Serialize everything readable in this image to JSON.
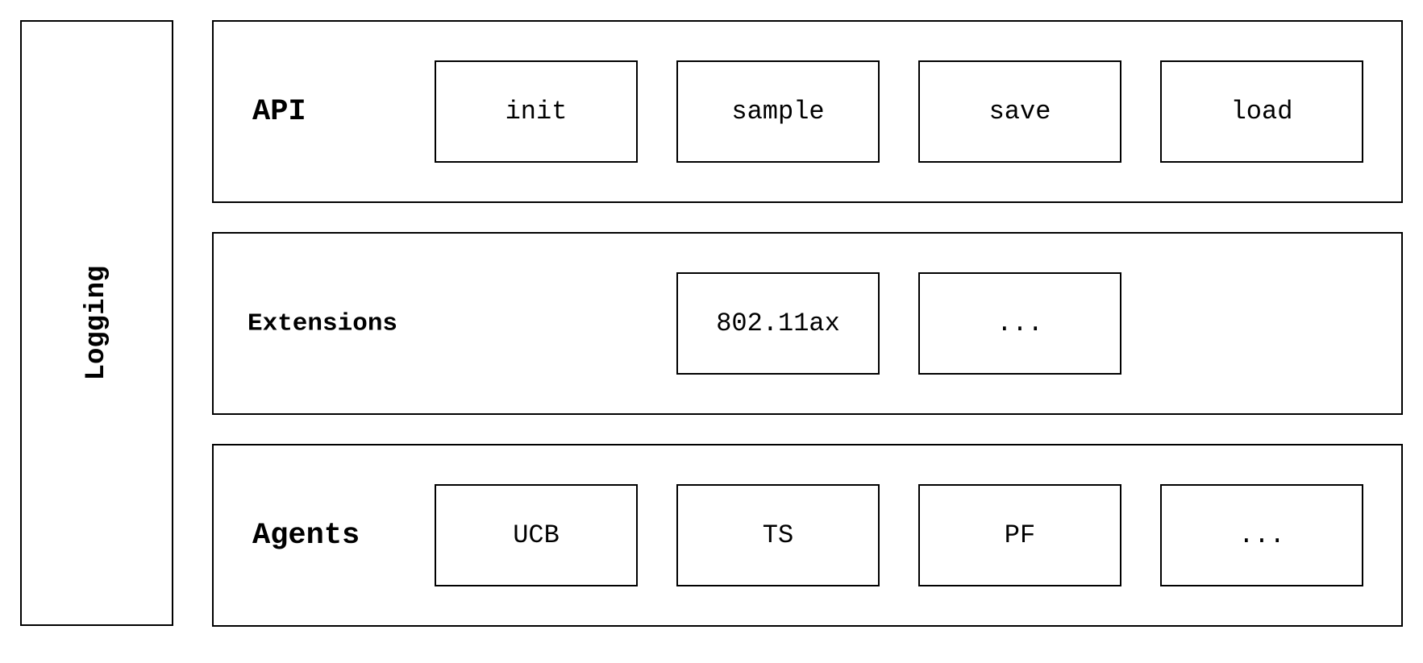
{
  "logging": {
    "label": "Logging"
  },
  "layers": {
    "api": {
      "title": "API",
      "modules": [
        "init",
        "sample",
        "save",
        "load"
      ]
    },
    "extensions": {
      "title": "Extensions",
      "modules": [
        "802.11ax",
        "..."
      ]
    },
    "agents": {
      "title": "Agents",
      "modules": [
        "UCB",
        "TS",
        "PF",
        "..."
      ]
    }
  }
}
